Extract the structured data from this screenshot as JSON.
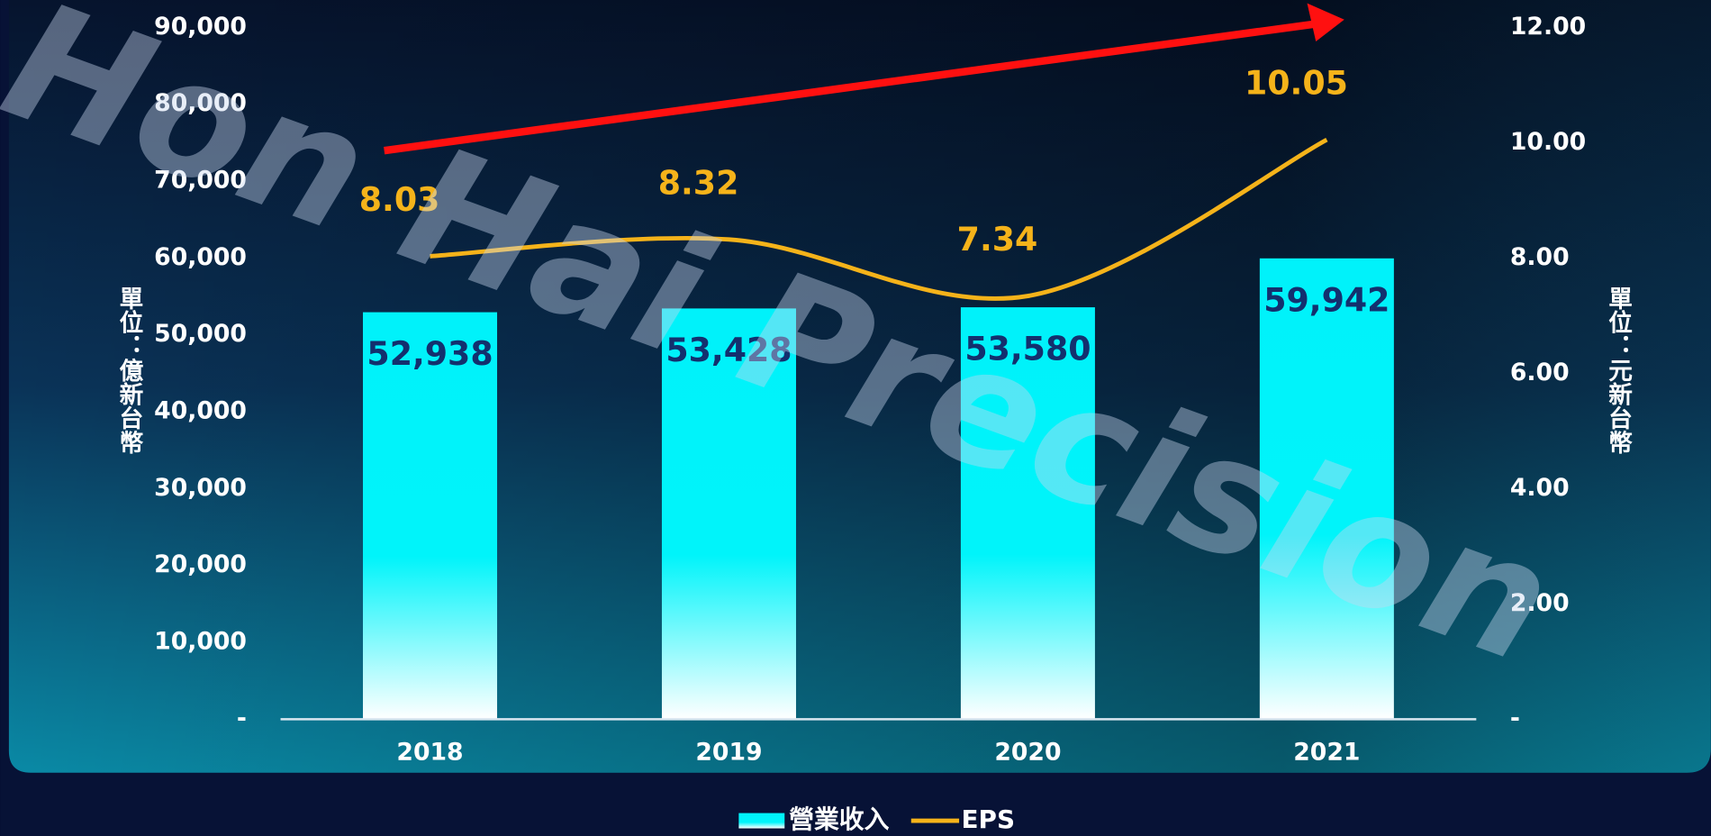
{
  "chart_data": {
    "type": "bar_line",
    "watermark": "Hon Hai Precision",
    "y_label": "單位：億新台幣",
    "y2_label": "單位：元新台幣",
    "categories": [
      "2018",
      "2019",
      "2020",
      "2021"
    ],
    "series": [
      {
        "name": "營業收入",
        "type": "bar",
        "color": "#00f2fa",
        "values": [
          52938,
          53428,
          53580,
          59942
        ],
        "value_labels": [
          "52,938",
          "53,428",
          "53,580",
          "59,942"
        ]
      },
      {
        "name": "EPS",
        "type": "line",
        "axis": "y2",
        "color": "#f5b31a",
        "values": [
          8.03,
          8.32,
          7.34,
          10.05
        ]
      }
    ],
    "ylim": [
      0,
      90000
    ],
    "yticks": [
      {
        "value": 0,
        "label": "-"
      },
      {
        "value": 10000,
        "label": "10,000"
      },
      {
        "value": 20000,
        "label": "20,000"
      },
      {
        "value": 30000,
        "label": "30,000"
      },
      {
        "value": 40000,
        "label": "40,000"
      },
      {
        "value": 50000,
        "label": "50,000"
      },
      {
        "value": 60000,
        "label": "60,000"
      },
      {
        "value": 70000,
        "label": "70,000"
      },
      {
        "value": 80000,
        "label": "80,000"
      },
      {
        "value": 90000,
        "label": "90,000"
      }
    ],
    "y2lim": [
      0,
      12
    ],
    "y2ticks": [
      {
        "value": 0,
        "label": "-"
      },
      {
        "value": 2,
        "label": "2.00"
      },
      {
        "value": 4,
        "label": "4.00"
      },
      {
        "value": 6,
        "label": "6.00"
      },
      {
        "value": 8,
        "label": "8.00"
      },
      {
        "value": 10,
        "label": "10.00"
      },
      {
        "value": 12,
        "label": "12.00"
      }
    ],
    "legend": "bottom"
  }
}
